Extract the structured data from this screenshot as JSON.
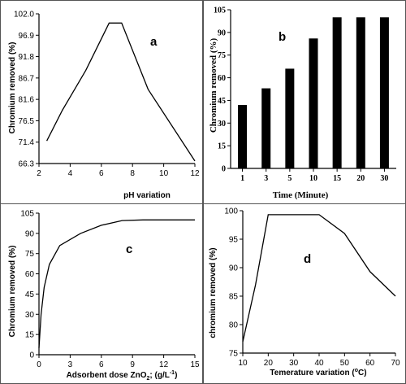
{
  "chart_data": [
    {
      "type": "line",
      "panel_label": "a",
      "xlabel": "pH variation",
      "ylabel": "Chromium removed (%)",
      "xlim": [
        2,
        12
      ],
      "ylim": [
        66.3,
        102.0
      ],
      "x_ticks": [
        "2",
        "4",
        "6",
        "8",
        "10",
        "12"
      ],
      "x_tick_values": [
        2,
        4,
        6,
        8,
        10,
        12
      ],
      "y_ticks": [
        "66.3",
        "71.4",
        "76.5",
        "81.6",
        "86.7",
        "91.8",
        "96.9",
        "102.0"
      ],
      "y_tick_values": [
        66.3,
        71.4,
        76.5,
        81.6,
        86.7,
        91.8,
        96.9,
        102.0
      ],
      "x": [
        2.5,
        3.5,
        5,
        6.5,
        7.3,
        9,
        12
      ],
      "y": [
        71.7,
        79.0,
        88.5,
        99.8,
        99.8,
        84.0,
        66.9
      ]
    },
    {
      "type": "bar",
      "panel_label": "b",
      "xlabel": "Time (Minute)",
      "ylabel": "Chromium  removed  (%)",
      "ylim": [
        0,
        105
      ],
      "categories": [
        "1",
        "3",
        "5",
        "10",
        "15",
        "20",
        "30"
      ],
      "values": [
        42,
        53,
        66,
        86,
        100,
        100,
        100
      ],
      "y_ticks": [
        "0",
        "15",
        "30",
        "45",
        "60",
        "75",
        "90",
        "105"
      ],
      "y_tick_values": [
        0,
        15,
        30,
        45,
        60,
        75,
        90,
        105
      ]
    },
    {
      "type": "line",
      "panel_label": "c",
      "xlabel": "Adsorbent dose ZnO",
      "xlabel_sub": "2",
      "xlabel_unit": "(g/L",
      "xlabel_sup": "-1",
      "xlabel_close": ")",
      "ylabel": "Chromium removed (%)",
      "xlim": [
        0,
        15
      ],
      "ylim": [
        0,
        105
      ],
      "x_ticks": [
        "0",
        "3",
        "6",
        "9",
        "12",
        "15"
      ],
      "x_tick_values": [
        0,
        3,
        6,
        9,
        12,
        15
      ],
      "y_ticks": [
        "0",
        "15",
        "30",
        "45",
        "60",
        "75",
        "90",
        "105"
      ],
      "y_tick_values": [
        0,
        15,
        30,
        45,
        60,
        75,
        90,
        105
      ],
      "x": [
        0,
        0.2,
        0.5,
        1,
        2,
        4,
        6,
        8,
        10,
        15
      ],
      "y": [
        5,
        30,
        50,
        67,
        81,
        90,
        96,
        99.5,
        100,
        100
      ]
    },
    {
      "type": "line",
      "panel_label": "d",
      "xlabel": "Temerature variation (",
      "xlabel_sup": "o",
      "xlabel_close": "C)",
      "ylabel": "chromium removed (%)",
      "xlim": [
        10,
        70
      ],
      "ylim": [
        75,
        100
      ],
      "x_ticks": [
        "10",
        "20",
        "30",
        "40",
        "50",
        "60",
        "70"
      ],
      "x_tick_values": [
        10,
        20,
        30,
        40,
        50,
        60,
        70
      ],
      "y_ticks": [
        "75",
        "80",
        "85",
        "90",
        "95",
        "100"
      ],
      "y_tick_values": [
        75,
        80,
        85,
        90,
        95,
        100
      ],
      "x": [
        10,
        15,
        20,
        40,
        50,
        60,
        70
      ],
      "y": [
        77,
        87,
        99.3,
        99.3,
        96,
        89.3,
        85
      ]
    }
  ]
}
